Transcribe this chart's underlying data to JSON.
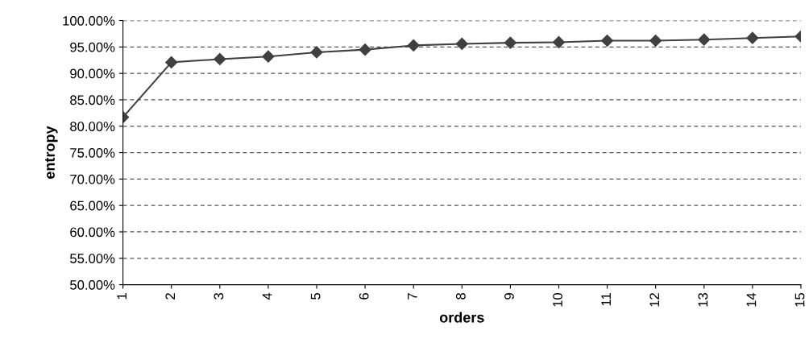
{
  "chart_data": {
    "type": "line",
    "xlabel": "orders",
    "ylabel": "entropy",
    "categories": [
      "1",
      "2",
      "3",
      "4",
      "5",
      "6",
      "7",
      "8",
      "9",
      "10",
      "11",
      "12",
      "13",
      "14",
      "15"
    ],
    "series": [
      {
        "color": "#404040",
        "values": [
          81.7,
          92.1,
          92.7,
          93.2,
          94.0,
          94.5,
          95.3,
          95.6,
          95.8,
          95.9,
          96.2,
          96.2,
          96.4,
          96.7,
          97.0
        ]
      }
    ],
    "ylim": [
      50,
      100
    ],
    "yticks": [
      {
        "value": 50,
        "label": "50.00%"
      },
      {
        "value": 55,
        "label": "55.00%"
      },
      {
        "value": 60,
        "label": "60.00%"
      },
      {
        "value": 65,
        "label": "65.00%"
      },
      {
        "value": 70,
        "label": "70.00%"
      },
      {
        "value": 75,
        "label": "75.00%"
      },
      {
        "value": 80,
        "label": "80.00%"
      },
      {
        "value": 85,
        "label": "85.00%"
      },
      {
        "value": 90,
        "label": "90.00%"
      },
      {
        "value": 95,
        "label": "95.00%"
      },
      {
        "value": 100,
        "label": "100.00%"
      }
    ],
    "grid": "y",
    "marker": "diamond",
    "line_style": "solid"
  }
}
